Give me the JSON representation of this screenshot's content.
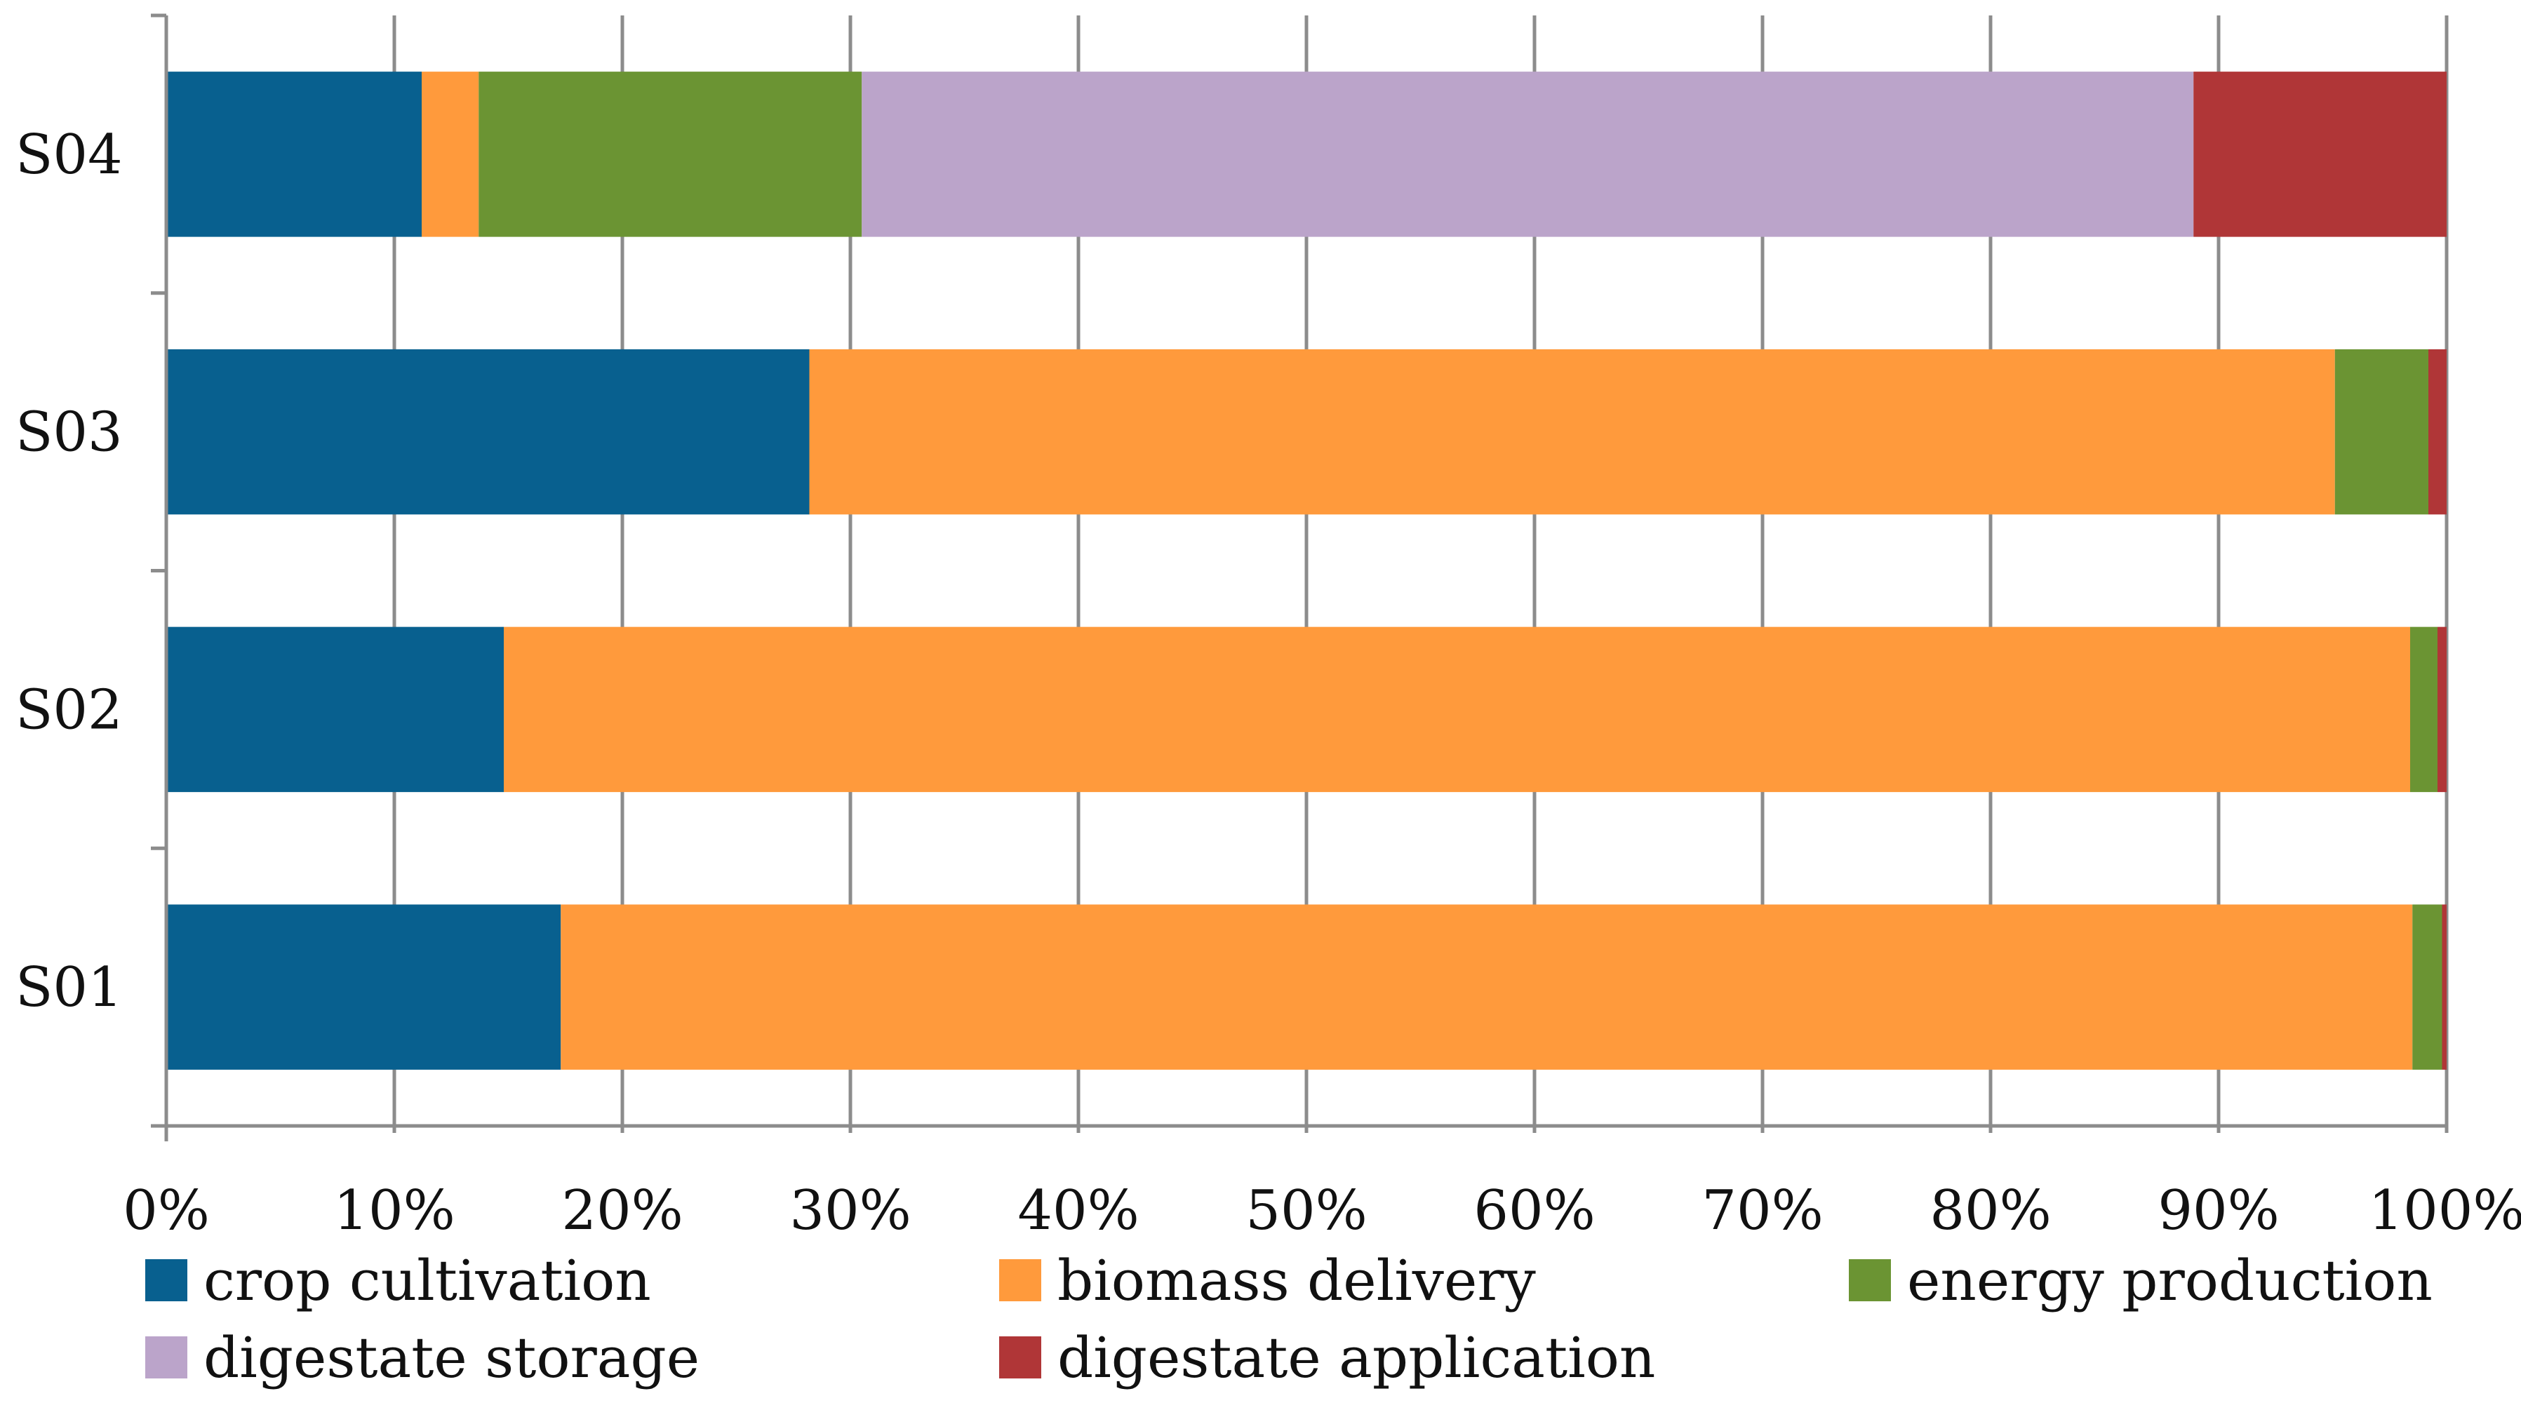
{
  "chart_data": {
    "type": "bar",
    "orientation": "horizontal",
    "stacked": true,
    "percent": true,
    "title": "",
    "xlabel": "",
    "ylabel": "",
    "xlim": [
      0,
      100
    ],
    "grid": true,
    "legend_position": "bottom",
    "categories": [
      "S01",
      "S02",
      "S03",
      "S04"
    ],
    "x_ticks": [
      "0%",
      "10%",
      "20%",
      "30%",
      "40%",
      "50%",
      "60%",
      "70%",
      "80%",
      "90%",
      "100%"
    ],
    "series": [
      {
        "name": "crop cultivation",
        "color": "#08608f",
        "values": [
          17.3,
          14.8,
          28.2,
          11.2
        ]
      },
      {
        "name": "biomass delivery",
        "color": "#ff9a3c",
        "values": [
          81.2,
          83.6,
          66.9,
          2.5
        ]
      },
      {
        "name": "energy production",
        "color": "#6b9433",
        "values": [
          1.3,
          1.2,
          4.1,
          16.8
        ]
      },
      {
        "name": "digestate storage",
        "color": "#bba4ca",
        "values": [
          0,
          0,
          0,
          58.4
        ]
      },
      {
        "name": "digestate application",
        "color": "#b03637",
        "values": [
          0.2,
          0.4,
          0.8,
          11.1
        ]
      }
    ]
  }
}
